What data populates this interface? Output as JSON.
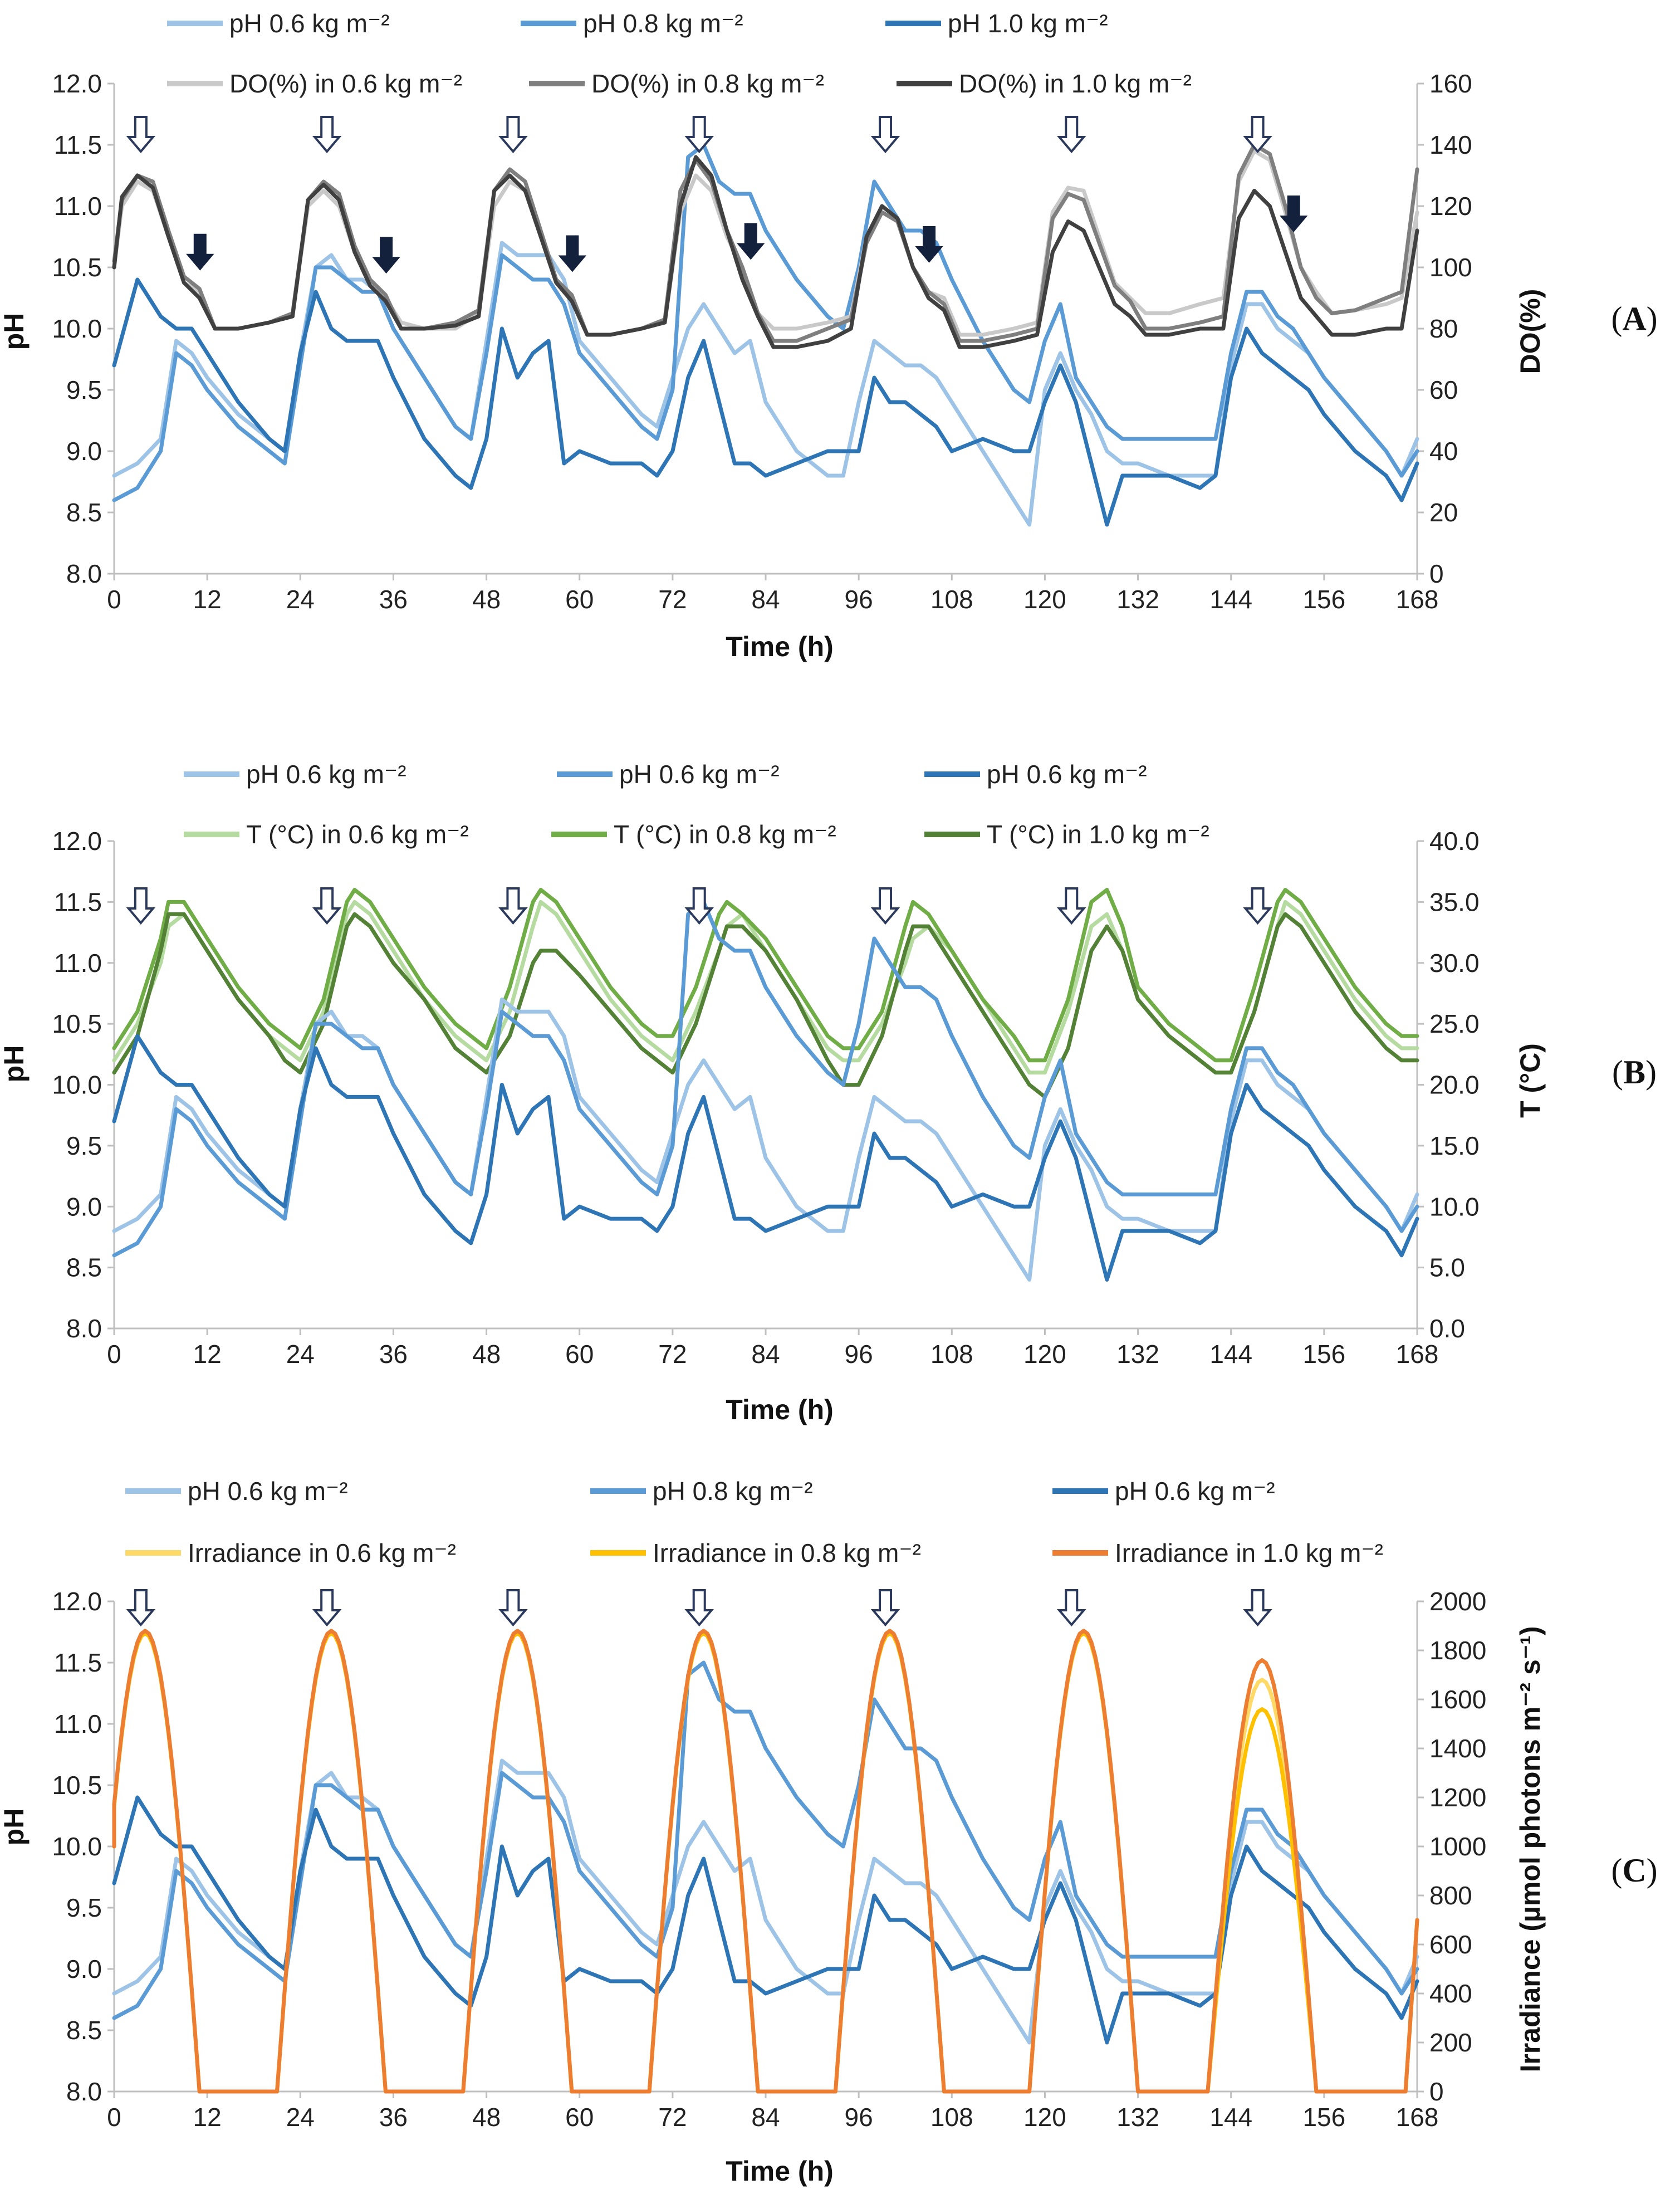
{
  "chart_data": [
    {
      "panel_label": "A",
      "type": "line",
      "title": "",
      "xlabel": "Time (h)",
      "ylabel": "pH",
      "y2label": "DO(%)",
      "xlim": [
        0,
        168
      ],
      "ylim": [
        8.0,
        12.0
      ],
      "y2lim": [
        0,
        160
      ],
      "x_ticks": [
        "0",
        "12",
        "24",
        "36",
        "48",
        "60",
        "72",
        "84",
        "96",
        "108",
        "120",
        "132",
        "144",
        "156",
        "168"
      ],
      "y_ticks": [
        "8.0",
        "8.5",
        "9.0",
        "9.5",
        "10.0",
        "10.5",
        "11.0",
        "11.5",
        "12.0"
      ],
      "y2_ticks": [
        "0",
        "20",
        "40",
        "60",
        "80",
        "100",
        "120",
        "140",
        "160"
      ],
      "legend": [
        {
          "label": "pH 0.6 kg m⁻²",
          "color": "#9dc3e6"
        },
        {
          "label": "pH 0.8 kg m⁻²",
          "color": "#5b9bd5"
        },
        {
          "label": "pH 1.0 kg m⁻²",
          "color": "#2e75b6"
        },
        {
          "label": "DO(%) in 0.6 kg m⁻²",
          "color": "#c9c9c9"
        },
        {
          "label": "DO(%) in 0.8 kg m⁻²",
          "color": "#7f7f7f"
        },
        {
          "label": "DO(%) in 1.0 kg m⁻²",
          "color": "#404040"
        }
      ],
      "open_arrows_at_h": [
        2,
        26,
        50,
        74,
        98,
        122,
        146
      ],
      "closed_arrows_at_h": [
        10,
        34,
        58,
        81,
        104,
        151
      ]
    },
    {
      "panel_label": "B",
      "type": "line",
      "title": "",
      "xlabel": "Time (h)",
      "ylabel": "pH",
      "y2label": "T (°C)",
      "xlim": [
        0,
        168
      ],
      "ylim": [
        8.0,
        12.0
      ],
      "y2lim": [
        0,
        40
      ],
      "x_ticks": [
        "0",
        "12",
        "24",
        "36",
        "48",
        "60",
        "72",
        "84",
        "96",
        "108",
        "120",
        "132",
        "144",
        "156",
        "168"
      ],
      "y_ticks": [
        "8.0",
        "8.5",
        "9.0",
        "9.5",
        "10.0",
        "10.5",
        "11.0",
        "11.5",
        "12.0"
      ],
      "y2_ticks": [
        "0.0",
        "5.0",
        "10.0",
        "15.0",
        "20.0",
        "25.0",
        "30.0",
        "35.0",
        "40.0"
      ],
      "legend": [
        {
          "label": "pH 0.6 kg m⁻²",
          "color": "#9dc3e6"
        },
        {
          "label": "pH 0.6 kg m⁻²",
          "color": "#5b9bd5"
        },
        {
          "label": "pH 0.6 kg m⁻²",
          "color": "#2e75b6"
        },
        {
          "label": "T (°C) in 0.6 kg m⁻²",
          "color": "#b5dba0"
        },
        {
          "label": "T (°C) in 0.8 kg m⁻²",
          "color": "#70ad47"
        },
        {
          "label": "T (°C) in 1.0 kg m⁻²",
          "color": "#538135"
        }
      ],
      "open_arrows_at_h": [
        2,
        26,
        50,
        74,
        98,
        122,
        146
      ]
    },
    {
      "panel_label": "C",
      "type": "line",
      "title": "",
      "xlabel": "Time (h)",
      "ylabel": "pH",
      "y2label": "Irradiance (µmol photons m⁻² s⁻¹)",
      "xlim": [
        0,
        168
      ],
      "ylim": [
        8.0,
        12.0
      ],
      "y2lim": [
        0,
        2000
      ],
      "x_ticks": [
        "0",
        "12",
        "24",
        "36",
        "48",
        "60",
        "72",
        "84",
        "96",
        "108",
        "120",
        "132",
        "144",
        "156",
        "168"
      ],
      "y_ticks": [
        "8.0",
        "8.5",
        "9.0",
        "9.5",
        "10.0",
        "10.5",
        "11.0",
        "11.5",
        "12.0"
      ],
      "y2_ticks": [
        "0",
        "200",
        "400",
        "600",
        "800",
        "1000",
        "1200",
        "1400",
        "1600",
        "1800",
        "2000"
      ],
      "legend": [
        {
          "label": "pH 0.6 kg m⁻²",
          "color": "#9dc3e6"
        },
        {
          "label": "pH 0.8 kg m⁻²",
          "color": "#5b9bd5"
        },
        {
          "label": "pH 0.6 kg m⁻²",
          "color": "#2e75b6"
        },
        {
          "label": "Irradiance in 0.6 kg m⁻²",
          "color": "#ffd966"
        },
        {
          "label": "Irradiance in 0.8 kg m⁻²",
          "color": "#ffc000"
        },
        {
          "label": "Irradiance in 1.0 kg m⁻²",
          "color": "#ed7d31"
        }
      ],
      "open_arrows_at_h": [
        2,
        26,
        50,
        74,
        98,
        122,
        146
      ]
    }
  ],
  "ph_series": {
    "x": [
      0,
      3,
      6,
      8,
      10,
      12,
      16,
      20,
      22,
      24,
      26,
      28,
      30,
      32,
      34,
      36,
      40,
      44,
      46,
      48,
      50,
      52,
      54,
      56,
      58,
      60,
      64,
      68,
      70,
      72,
      74,
      76,
      78,
      80,
      82,
      84,
      88,
      92,
      94,
      96,
      98,
      100,
      102,
      104,
      106,
      108,
      112,
      116,
      118,
      120,
      122,
      124,
      126,
      128,
      130,
      132,
      136,
      140,
      142,
      144,
      146,
      148,
      150,
      152,
      154,
      156,
      160,
      164,
      166,
      168
    ],
    "ph_0_6": [
      8.8,
      8.9,
      9.1,
      9.9,
      9.8,
      9.6,
      9.3,
      9.1,
      9.0,
      9.8,
      10.5,
      10.6,
      10.4,
      10.4,
      10.3,
      10.0,
      9.6,
      9.2,
      9.1,
      9.9,
      10.7,
      10.6,
      10.6,
      10.6,
      10.4,
      9.9,
      9.6,
      9.3,
      9.2,
      9.6,
      10.0,
      10.2,
      10.0,
      9.8,
      9.9,
      9.4,
      9.0,
      8.8,
      8.8,
      9.4,
      9.9,
      9.8,
      9.7,
      9.7,
      9.6,
      9.4,
      9.0,
      8.6,
      8.4,
      9.5,
      9.8,
      9.5,
      9.3,
      9.0,
      8.9,
      8.9,
      8.8,
      8.8,
      8.8,
      9.7,
      10.2,
      10.2,
      10.0,
      9.9,
      9.8,
      9.6,
      9.3,
      9.0,
      8.8,
      9.1
    ],
    "ph_0_8": [
      8.6,
      8.7,
      9.0,
      9.8,
      9.7,
      9.5,
      9.2,
      9.0,
      8.9,
      9.7,
      10.5,
      10.5,
      10.4,
      10.3,
      10.3,
      10.0,
      9.6,
      9.2,
      9.1,
      9.8,
      10.6,
      10.5,
      10.4,
      10.4,
      10.2,
      9.8,
      9.5,
      9.2,
      9.1,
      9.5,
      11.4,
      11.5,
      11.2,
      11.1,
      11.1,
      10.8,
      10.4,
      10.1,
      10.0,
      10.5,
      11.2,
      11.0,
      10.8,
      10.8,
      10.7,
      10.4,
      9.9,
      9.5,
      9.4,
      9.9,
      10.2,
      9.6,
      9.4,
      9.2,
      9.1,
      9.1,
      9.1,
      9.1,
      9.1,
      9.8,
      10.3,
      10.3,
      10.1,
      10.0,
      9.8,
      9.6,
      9.3,
      9.0,
      8.8,
      9.0
    ],
    "ph_1_0": [
      9.7,
      10.4,
      10.1,
      10.0,
      10.0,
      9.8,
      9.4,
      9.1,
      9.0,
      9.8,
      10.3,
      10.0,
      9.9,
      9.9,
      9.9,
      9.6,
      9.1,
      8.8,
      8.7,
      9.1,
      10.0,
      9.6,
      9.8,
      9.9,
      8.9,
      9.0,
      8.9,
      8.9,
      8.8,
      9.0,
      9.6,
      9.9,
      9.4,
      8.9,
      8.9,
      8.8,
      8.9,
      9.0,
      9.0,
      9.0,
      9.6,
      9.4,
      9.4,
      9.3,
      9.2,
      9.0,
      9.1,
      9.0,
      9.0,
      9.4,
      9.7,
      9.4,
      8.9,
      8.4,
      8.8,
      8.8,
      8.8,
      8.7,
      8.8,
      9.6,
      10.0,
      9.8,
      9.7,
      9.6,
      9.5,
      9.3,
      9.0,
      8.8,
      8.6,
      8.9
    ]
  },
  "do_series": {
    "x": [
      0,
      1,
      3,
      5,
      7,
      9,
      11,
      13,
      16,
      20,
      23,
      25,
      27,
      29,
      31,
      33,
      35,
      37,
      40,
      44,
      47,
      49,
      51,
      53,
      55,
      57,
      59,
      61,
      64,
      68,
      71,
      73,
      75,
      77,
      79,
      81,
      83,
      85,
      88,
      92,
      95,
      97,
      99,
      101,
      103,
      105,
      107,
      109,
      112,
      116,
      119,
      121,
      123,
      125,
      127,
      129,
      131,
      133,
      136,
      140,
      143,
      145,
      147,
      149,
      151,
      153,
      155,
      157,
      160,
      164,
      166,
      168
    ],
    "do_0_6": [
      100,
      120,
      128,
      125,
      110,
      95,
      92,
      80,
      80,
      82,
      85,
      120,
      125,
      120,
      105,
      95,
      90,
      82,
      80,
      80,
      85,
      120,
      128,
      125,
      110,
      95,
      90,
      78,
      78,
      80,
      82,
      118,
      130,
      125,
      110,
      100,
      85,
      80,
      80,
      82,
      84,
      110,
      118,
      115,
      100,
      92,
      90,
      78,
      78,
      80,
      82,
      118,
      126,
      125,
      110,
      95,
      90,
      85,
      85,
      88,
      90,
      128,
      138,
      135,
      118,
      100,
      92,
      85,
      86,
      88,
      90,
      118
    ],
    "do_0_8": [
      102,
      122,
      130,
      128,
      112,
      97,
      93,
      80,
      80,
      82,
      85,
      122,
      128,
      124,
      107,
      96,
      91,
      80,
      80,
      82,
      86,
      125,
      132,
      128,
      112,
      96,
      91,
      78,
      78,
      80,
      83,
      125,
      135,
      128,
      112,
      100,
      85,
      76,
      76,
      80,
      83,
      108,
      118,
      115,
      100,
      92,
      88,
      76,
      76,
      78,
      80,
      116,
      124,
      122,
      108,
      94,
      89,
      80,
      80,
      82,
      84,
      130,
      140,
      137,
      120,
      100,
      90,
      85,
      86,
      90,
      92,
      132
    ],
    "do_1_0": [
      100,
      123,
      130,
      126,
      110,
      95,
      90,
      80,
      80,
      82,
      84,
      122,
      127,
      122,
      105,
      94,
      89,
      80,
      80,
      81,
      84,
      125,
      130,
      125,
      110,
      95,
      89,
      78,
      78,
      80,
      82,
      120,
      136,
      130,
      112,
      96,
      84,
      74,
      74,
      76,
      80,
      110,
      120,
      116,
      100,
      90,
      86,
      74,
      74,
      76,
      78,
      105,
      115,
      112,
      100,
      88,
      84,
      78,
      78,
      80,
      80,
      116,
      125,
      120,
      105,
      90,
      84,
      78,
      78,
      80,
      80,
      112
    ]
  },
  "temp_series": {
    "x": [
      0,
      3,
      6,
      7,
      9,
      12,
      16,
      20,
      22,
      24,
      27,
      30,
      31,
      33,
      36,
      40,
      44,
      46,
      48,
      51,
      54,
      55,
      57,
      60,
      64,
      68,
      70,
      72,
      75,
      78,
      79,
      81,
      84,
      88,
      92,
      94,
      96,
      99,
      102,
      103,
      105,
      108,
      112,
      116,
      118,
      120,
      123,
      126,
      128,
      130,
      132,
      136,
      140,
      142,
      144,
      147,
      150,
      151,
      153,
      156,
      160,
      164,
      166,
      168
    ],
    "t_0_6": [
      22,
      25,
      30,
      33,
      34,
      31,
      27,
      24,
      23,
      22,
      26,
      34,
      35,
      34,
      31,
      27,
      24,
      23,
      22,
      26,
      33,
      35,
      34,
      31,
      27,
      24,
      23,
      22,
      26,
      31,
      33,
      34,
      31,
      27,
      23,
      22,
      22,
      25,
      30,
      32,
      33,
      31,
      27,
      23,
      21,
      21,
      26,
      33,
      34,
      31,
      27,
      24,
      22,
      21,
      21,
      26,
      33,
      35,
      34,
      31,
      27,
      24,
      23,
      23
    ],
    "t_0_8": [
      23,
      26,
      32,
      35,
      35,
      32,
      28,
      25,
      24,
      23,
      27,
      35,
      36,
      35,
      32,
      28,
      25,
      24,
      23,
      28,
      35,
      36,
      35,
      32,
      28,
      25,
      24,
      24,
      28,
      34,
      35,
      34,
      32,
      28,
      24,
      23,
      23,
      26,
      33,
      35,
      34,
      31,
      27,
      24,
      22,
      22,
      27,
      35,
      36,
      33,
      28,
      25,
      23,
      22,
      22,
      28,
      35,
      36,
      35,
      32,
      28,
      25,
      24,
      24
    ],
    "t_1_0": [
      21,
      24,
      31,
      34,
      34,
      31,
      27,
      24,
      22,
      21,
      25,
      33,
      34,
      33,
      30,
      27,
      23,
      22,
      21,
      24,
      30,
      31,
      31,
      29,
      26,
      23,
      22,
      21,
      25,
      31,
      33,
      33,
      31,
      27,
      22,
      20,
      20,
      24,
      31,
      33,
      33,
      30,
      26,
      22,
      20,
      19,
      23,
      31,
      33,
      31,
      27,
      24,
      22,
      21,
      21,
      26,
      33,
      34,
      33,
      30,
      26,
      23,
      22,
      22
    ]
  },
  "irradiance_series": {
    "peaks_at_h": [
      4,
      28,
      52,
      76,
      100,
      125,
      148
    ],
    "half_width_h": 7,
    "peak_0_6": [
      1870,
      1870,
      1870,
      1870,
      1870,
      1870,
      1680
    ],
    "peak_0_8": [
      1870,
      1870,
      1870,
      1870,
      1870,
      1870,
      1560
    ],
    "peak_1_0": [
      1880,
      1880,
      1880,
      1880,
      1880,
      1880,
      1760
    ],
    "start_value_h0": 1000,
    "end_value_h168": 700
  }
}
